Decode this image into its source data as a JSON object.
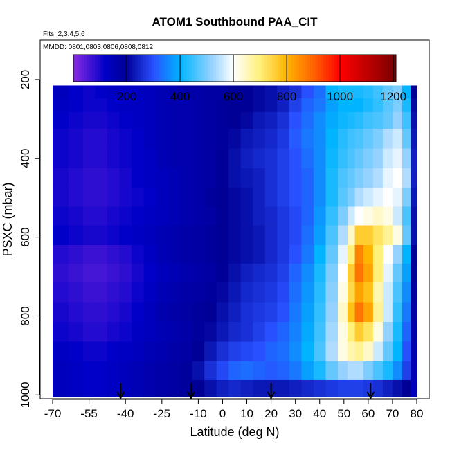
{
  "chart_data": {
    "type": "heatmap",
    "title": "ATOM1 Southbound PAA_CIT",
    "notes": [
      "Flts: 2,3,4,5,6",
      "MMDD: 0801,0803,0806,0808,0812"
    ],
    "xlabel": "Latitude (deg N)",
    "ylabel": "PSXC (mbar)",
    "xlim": [
      -70,
      80
    ],
    "ylim": [
      1010,
      100
    ],
    "x_ticks": [
      -70,
      -55,
      -40,
      -25,
      -10,
      0,
      10,
      20,
      30,
      40,
      50,
      60,
      70,
      80
    ],
    "x_tick_labels": [
      "-70",
      "-55",
      "-40",
      "-25",
      "-10",
      "0",
      "10",
      "20",
      "30",
      "40",
      "50",
      "60",
      "70",
      "80"
    ],
    "y_ticks": [
      200,
      400,
      600,
      800,
      1000
    ],
    "y_tick_labels": [
      "200",
      "400",
      "600",
      "800",
      "1000"
    ],
    "colorbar": {
      "range": [
        0,
        1210
      ],
      "ticks": [
        200,
        400,
        600,
        800,
        1000,
        1200
      ],
      "tick_labels": [
        "200",
        "400",
        "600",
        "800",
        "1000",
        "1200"
      ],
      "stops": [
        {
          "v": 0,
          "c": "#8a2be2"
        },
        {
          "v": 120,
          "c": "#0000c8"
        },
        {
          "v": 200,
          "c": "#000096"
        },
        {
          "v": 300,
          "c": "#2850ff"
        },
        {
          "v": 400,
          "c": "#00b4ff"
        },
        {
          "v": 520,
          "c": "#96d2ff"
        },
        {
          "v": 600,
          "c": "#ffffff"
        },
        {
          "v": 700,
          "c": "#fff07a"
        },
        {
          "v": 800,
          "c": "#ffb400"
        },
        {
          "v": 900,
          "c": "#ff6400"
        },
        {
          "v": 1000,
          "c": "#ff0000"
        },
        {
          "v": 1210,
          "c": "#780000"
        }
      ]
    },
    "pressure_levels": [
      230,
      265,
      300,
      350,
      400,
      450,
      500,
      545,
      595,
      645,
      690,
      740,
      790,
      840,
      890,
      940,
      985
    ],
    "latitude_bins": [
      -67,
      -60,
      -55,
      -50,
      -45,
      -40,
      -35,
      -30,
      -25,
      -20,
      -15,
      -10,
      -5,
      0,
      5,
      10,
      15,
      20,
      25,
      30,
      35,
      40,
      45,
      50,
      53,
      56,
      60,
      64,
      68,
      72,
      76,
      79
    ],
    "values": [
      [
        140,
        120,
        110,
        120,
        130,
        130,
        130,
        140,
        150,
        160,
        170,
        170,
        180,
        180,
        200,
        200,
        210,
        220,
        240,
        260,
        300,
        330,
        400,
        420,
        420,
        420,
        430,
        450,
        480,
        500,
        400,
        200
      ],
      [
        130,
        120,
        110,
        110,
        120,
        130,
        130,
        140,
        150,
        160,
        160,
        170,
        180,
        190,
        200,
        200,
        210,
        220,
        240,
        280,
        320,
        340,
        380,
        400,
        400,
        400,
        420,
        440,
        470,
        500,
        420,
        210
      ],
      [
        120,
        110,
        100,
        100,
        110,
        120,
        130,
        140,
        150,
        160,
        160,
        170,
        180,
        190,
        200,
        210,
        230,
        240,
        260,
        300,
        330,
        360,
        390,
        410,
        420,
        430,
        450,
        460,
        480,
        520,
        450,
        220
      ],
      [
        110,
        100,
        90,
        90,
        100,
        110,
        120,
        140,
        150,
        160,
        160,
        170,
        180,
        190,
        210,
        230,
        240,
        250,
        270,
        310,
        340,
        360,
        400,
        430,
        450,
        460,
        480,
        500,
        540,
        560,
        480,
        230
      ],
      [
        110,
        100,
        90,
        90,
        100,
        110,
        120,
        130,
        150,
        160,
        160,
        170,
        180,
        200,
        220,
        240,
        250,
        260,
        280,
        300,
        330,
        360,
        410,
        440,
        460,
        480,
        500,
        520,
        560,
        580,
        520,
        240
      ],
      [
        100,
        90,
        80,
        80,
        90,
        100,
        120,
        130,
        140,
        150,
        160,
        170,
        180,
        200,
        220,
        230,
        240,
        260,
        280,
        300,
        320,
        360,
        420,
        460,
        480,
        500,
        520,
        540,
        580,
        600,
        540,
        240
      ],
      [
        100,
        90,
        80,
        80,
        90,
        100,
        110,
        120,
        140,
        150,
        160,
        170,
        190,
        200,
        210,
        220,
        240,
        260,
        280,
        300,
        320,
        360,
        420,
        470,
        500,
        540,
        560,
        580,
        600,
        580,
        500,
        230
      ],
      [
        110,
        100,
        90,
        90,
        100,
        110,
        120,
        130,
        140,
        150,
        160,
        170,
        180,
        200,
        210,
        220,
        240,
        250,
        270,
        290,
        320,
        370,
        440,
        500,
        560,
        600,
        620,
        640,
        620,
        560,
        460,
        220
      ],
      [
        120,
        110,
        100,
        100,
        110,
        120,
        130,
        140,
        150,
        160,
        170,
        180,
        190,
        200,
        210,
        220,
        230,
        250,
        270,
        290,
        330,
        380,
        460,
        540,
        640,
        760,
        760,
        720,
        680,
        620,
        480,
        220
      ],
      [
        90,
        80,
        70,
        70,
        80,
        90,
        110,
        130,
        150,
        160,
        170,
        180,
        190,
        200,
        210,
        220,
        230,
        250,
        270,
        300,
        340,
        400,
        480,
        580,
        700,
        860,
        800,
        700,
        600,
        520,
        400,
        200
      ],
      [
        80,
        70,
        60,
        60,
        70,
        80,
        100,
        120,
        140,
        150,
        160,
        170,
        180,
        200,
        220,
        240,
        250,
        260,
        280,
        320,
        360,
        420,
        500,
        600,
        760,
        880,
        820,
        700,
        580,
        480,
        380,
        200
      ],
      [
        90,
        80,
        70,
        70,
        80,
        90,
        110,
        130,
        150,
        160,
        170,
        180,
        190,
        210,
        230,
        250,
        260,
        270,
        290,
        330,
        370,
        430,
        510,
        620,
        740,
        820,
        780,
        660,
        560,
        460,
        360,
        190
      ],
      [
        100,
        90,
        80,
        80,
        90,
        100,
        120,
        140,
        160,
        170,
        180,
        190,
        200,
        220,
        240,
        260,
        270,
        280,
        300,
        340,
        380,
        440,
        520,
        640,
        780,
        880,
        820,
        680,
        560,
        440,
        340,
        180
      ],
      [
        110,
        100,
        90,
        90,
        100,
        110,
        130,
        140,
        150,
        160,
        170,
        190,
        210,
        230,
        250,
        260,
        280,
        300,
        320,
        350,
        390,
        450,
        530,
        620,
        700,
        760,
        720,
        620,
        520,
        420,
        320,
        170
      ],
      [
        130,
        120,
        110,
        110,
        120,
        130,
        140,
        150,
        160,
        170,
        180,
        200,
        230,
        260,
        280,
        290,
        300,
        320,
        330,
        360,
        400,
        460,
        540,
        620,
        660,
        680,
        640,
        560,
        480,
        400,
        300,
        160
      ],
      [
        140,
        130,
        120,
        120,
        130,
        140,
        150,
        160,
        170,
        180,
        190,
        220,
        260,
        290,
        320,
        330,
        320,
        310,
        320,
        340,
        380,
        420,
        480,
        520,
        540,
        540,
        500,
        460,
        420,
        360,
        280,
        150
      ],
      [
        140,
        130,
        120,
        120,
        130,
        140,
        150,
        160,
        170,
        180,
        190,
        200,
        220,
        240,
        250,
        240,
        230,
        230,
        230,
        240,
        250,
        260,
        270,
        280,
        280,
        280,
        270,
        260,
        240,
        220,
        200,
        140
      ]
    ],
    "arrows_latitude": [
      -42,
      -13,
      20,
      61
    ]
  }
}
